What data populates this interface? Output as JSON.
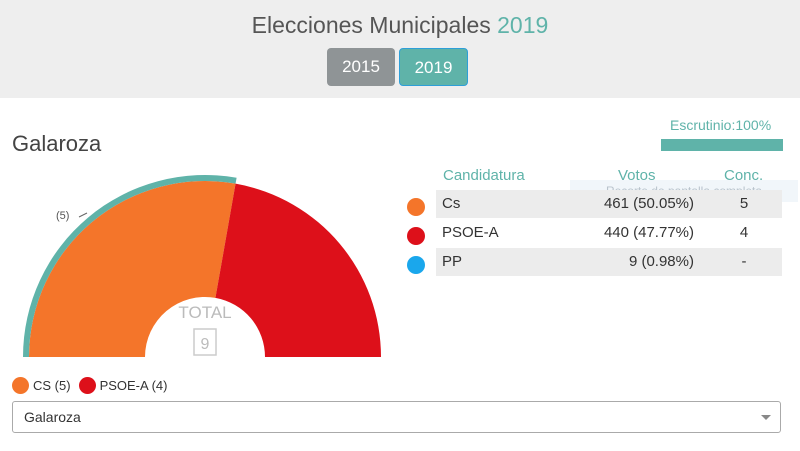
{
  "header": {
    "title_prefix": "Elecciones Municipales",
    "title_year": "2019",
    "years": [
      {
        "label": "2015",
        "active": false
      },
      {
        "label": "2019",
        "active": true
      }
    ]
  },
  "town": "Galaroza",
  "scrutiny": {
    "label": "Escrutinio:100%",
    "percent": 100
  },
  "table": {
    "headers": {
      "party": "Candidatura",
      "votes": "Votos",
      "seats": "Conc."
    },
    "rows": [
      {
        "party": "Cs",
        "votes": "461 (50.05%)",
        "seats": "5",
        "color": "#f4752a"
      },
      {
        "party": "PSOE-A",
        "votes": "440 (47.77%)",
        "seats": "4",
        "color": "#dd101a"
      },
      {
        "party": "PP",
        "votes": "9 (0.98%)",
        "seats": "-",
        "color": "#1aa7ec"
      }
    ]
  },
  "watermark": "Recorte de pantalla completa",
  "chart_data": {
    "type": "pie",
    "style": "half-donut",
    "center_label": "TOTAL",
    "center_value": "9",
    "majority_marker_label": "(5)",
    "slices": [
      {
        "name": "CS",
        "value": 5,
        "color": "#f4752a",
        "highlighted": true
      },
      {
        "name": "PSOE-A",
        "value": 4,
        "color": "#dd101a"
      }
    ],
    "highlight_color": "#5fb3a9"
  },
  "legend": [
    {
      "label": "CS (5)",
      "color": "#f4752a"
    },
    {
      "label": "PSOE-A (4)",
      "color": "#dd101a"
    }
  ],
  "select": {
    "value": "Galaroza"
  }
}
